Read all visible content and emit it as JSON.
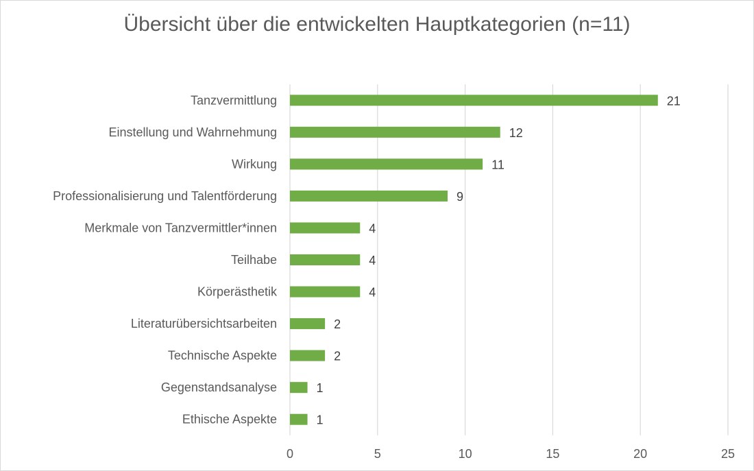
{
  "chart_data": {
    "type": "bar",
    "orientation": "horizontal",
    "title": "Übersicht über die entwickelten Hauptkategorien (n=11)",
    "categories": [
      "Tanzvermittlung",
      "Einstellung und Wahrnehmung",
      "Wirkung",
      "Professionalisierung und Talentförderung",
      "Merkmale von Tanzvermittler*innen",
      "Teilhabe",
      "Körperästhetik",
      "Literaturübersichtsarbeiten",
      "Technische Aspekte",
      "Gegenstandsanalyse",
      "Ethische Aspekte"
    ],
    "values": [
      21,
      12,
      11,
      9,
      4,
      4,
      4,
      2,
      2,
      1,
      1
    ],
    "xlim": [
      0,
      25
    ],
    "xticks": [
      0,
      5,
      10,
      15,
      20,
      25
    ],
    "xlabel": "",
    "ylabel": "",
    "grid": "vertical",
    "data_labels": true,
    "bar_color": "#70AD47",
    "grid_color": "#D9D9D9",
    "text_color": "#595959"
  }
}
